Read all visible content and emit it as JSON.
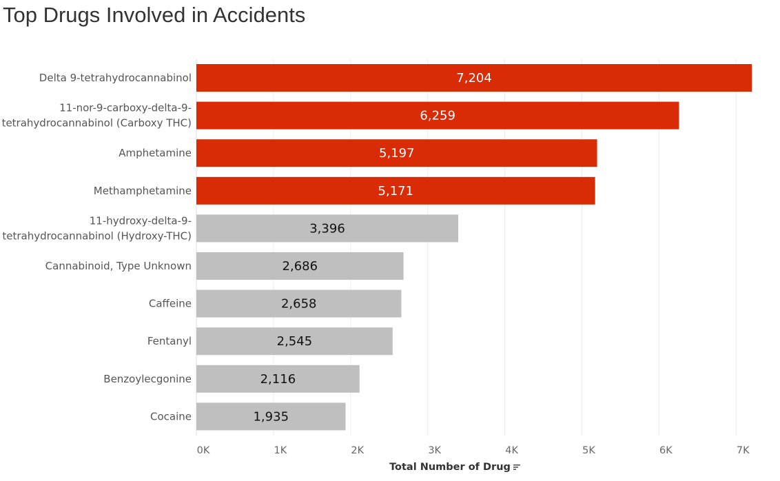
{
  "title": "Top Drugs Involved in Accidents",
  "colors": {
    "highlight": "#d92b05",
    "normal": "#bfbfbf",
    "grid": "#ececec",
    "highlight_text": "#ffffff",
    "normal_text": "#111111"
  },
  "chart_data": {
    "type": "bar",
    "orientation": "horizontal",
    "title": "Top Drugs Involved in Accidents",
    "xlabel": "Total Number of Drug",
    "ylabel": "",
    "xlim": [
      0,
      7500
    ],
    "grid": true,
    "x_ticks": [
      0,
      1000,
      2000,
      3000,
      4000,
      5000,
      6000,
      7000
    ],
    "x_tick_labels": [
      "0K",
      "1K",
      "2K",
      "3K",
      "4K",
      "5K",
      "6K",
      "7K"
    ],
    "categories": [
      [
        "Delta 9-tetrahydrocannabinol"
      ],
      [
        "11-nor-9-carboxy-delta-9-",
        "tetrahydrocannabinol (Carboxy THC)"
      ],
      [
        "Amphetamine"
      ],
      [
        "Methamphetamine"
      ],
      [
        "11-hydroxy-delta-9-",
        "tetrahydrocannabinol (Hydroxy-THC)"
      ],
      [
        "Cannabinoid, Type Unknown"
      ],
      [
        "Caffeine"
      ],
      [
        "Fentanyl"
      ],
      [
        "Benzoylecgonine"
      ],
      [
        "Cocaine"
      ]
    ],
    "values": [
      7204,
      6259,
      5197,
      5171,
      3396,
      2686,
      2658,
      2545,
      2116,
      1935
    ],
    "value_labels": [
      "7,204",
      "6,259",
      "5,197",
      "5,171",
      "3,396",
      "2,686",
      "2,658",
      "2,545",
      "2,116",
      "1,935"
    ],
    "highlighted": [
      true,
      true,
      true,
      true,
      false,
      false,
      false,
      false,
      false,
      false
    ]
  }
}
